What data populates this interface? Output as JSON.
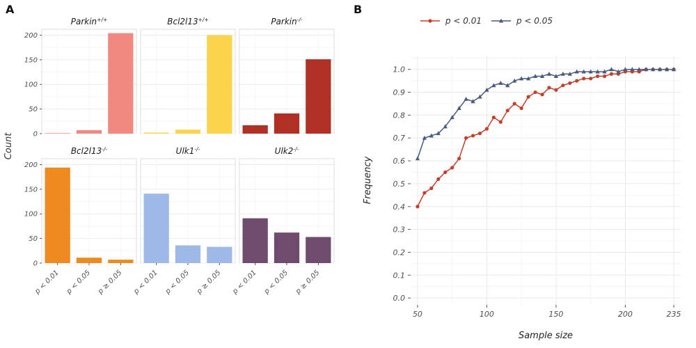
{
  "figure": {
    "background": "#ffffff"
  },
  "chart_data": [
    {
      "type": "bar",
      "panel_label": "A",
      "ylabel": "Count",
      "categories": [
        "p < 0.01",
        "p < 0.05",
        "p ≥ 0.05"
      ],
      "yticks": [
        0,
        50,
        100,
        150,
        200
      ],
      "ylim": [
        0,
        212
      ],
      "grid": true,
      "facet_border_color": "#dcdcdc",
      "grid_major_color": "#ececec",
      "grid_minor_color": "#f5f5f5",
      "tick_label_color": "#4d4d4d",
      "title_color": "#1a1a1a",
      "facets": [
        {
          "title_base": "Parkin",
          "title_sup": "+/+",
          "color": "#F2897E",
          "values": [
            1,
            7,
            204
          ]
        },
        {
          "title_base": "Bcl2l13",
          "title_sup": "+/+",
          "color": "#FBD44C",
          "values": [
            2,
            8,
            200
          ]
        },
        {
          "title_base": "Parkin",
          "title_sup": "-/-",
          "color": "#B03024",
          "values": [
            17,
            41,
            151
          ]
        },
        {
          "title_base": "Bcl2l13",
          "title_sup": "-/-",
          "color": "#EE8A1F",
          "values": [
            194,
            11,
            7
          ]
        },
        {
          "title_base": "Ulk1",
          "title_sup": "-/-",
          "color": "#9FB9E6",
          "values": [
            141,
            36,
            33
          ]
        },
        {
          "title_base": "Ulk2",
          "title_sup": "-/-",
          "color": "#6F4B6E",
          "values": [
            91,
            62,
            53
          ]
        }
      ]
    },
    {
      "type": "line",
      "panel_label": "B",
      "xlabel": "Sample size",
      "ylabel": "Frequency",
      "xticks": [
        50,
        100,
        150,
        200,
        235
      ],
      "xminor": [
        75,
        125,
        175
      ],
      "yticks": [
        0.0,
        0.1,
        0.2,
        0.3,
        0.4,
        0.5,
        0.6,
        0.7,
        0.8,
        0.9,
        1.0
      ],
      "xlim": [
        45,
        240
      ],
      "ylim": [
        -0.03,
        1.06
      ],
      "legend_position": "top",
      "grid_major_color": "#e9e9e9",
      "grid_minor_color": "#f4f4f4",
      "tick_label_color": "#4d4d4d",
      "axis_title_color": "#222222",
      "x": [
        50,
        55,
        60,
        65,
        70,
        75,
        80,
        85,
        90,
        95,
        100,
        105,
        110,
        115,
        120,
        125,
        130,
        135,
        140,
        145,
        150,
        155,
        160,
        165,
        170,
        175,
        180,
        185,
        190,
        195,
        200,
        205,
        210,
        215,
        220,
        225,
        230,
        235
      ],
      "series": [
        {
          "name": "p < 0.01",
          "color": "#C2402A",
          "marker": "circle",
          "y": [
            0.4,
            0.46,
            0.48,
            0.52,
            0.55,
            0.57,
            0.61,
            0.7,
            0.71,
            0.72,
            0.74,
            0.79,
            0.77,
            0.82,
            0.85,
            0.83,
            0.88,
            0.9,
            0.89,
            0.92,
            0.91,
            0.93,
            0.94,
            0.95,
            0.96,
            0.96,
            0.97,
            0.97,
            0.98,
            0.98,
            0.99,
            0.99,
            0.99,
            1.0,
            1.0,
            1.0,
            1.0,
            1.0
          ]
        },
        {
          "name": "p < 0.05",
          "color": "#49597F",
          "marker": "triangle",
          "y": [
            0.61,
            0.7,
            0.71,
            0.72,
            0.75,
            0.79,
            0.83,
            0.87,
            0.86,
            0.88,
            0.91,
            0.93,
            0.94,
            0.93,
            0.95,
            0.96,
            0.96,
            0.97,
            0.97,
            0.98,
            0.97,
            0.98,
            0.98,
            0.99,
            0.99,
            0.99,
            0.99,
            0.99,
            1.0,
            0.99,
            1.0,
            1.0,
            1.0,
            1.0,
            1.0,
            1.0,
            1.0,
            1.0
          ]
        }
      ]
    }
  ]
}
